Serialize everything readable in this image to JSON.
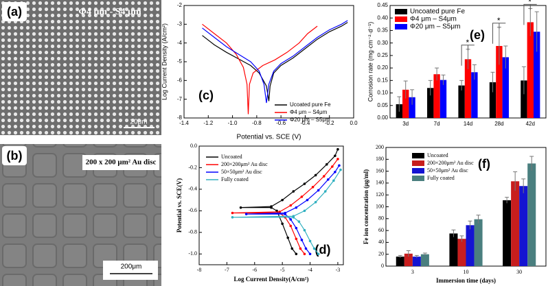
{
  "images": [
    {
      "label": "(a)",
      "caption": "Φ4 μm - S4 μm",
      "scale_bar": "20μm"
    },
    {
      "label": "(b)",
      "caption": "200 x 200 μm² Au disc",
      "scale_bar": "200μm"
    }
  ],
  "chart_data": [
    {
      "type": "line",
      "panel_label": "(c)",
      "x_label": "Potential vs. SCE (V)",
      "y_label": "Log Current Density (A/cm²)",
      "xlim": [
        -1.4,
        0.0
      ],
      "xticks": [
        -1.4,
        -1.2,
        {
          "value": -1.0,
          "label": "-1.0"
        },
        -0.8,
        -0.6,
        -0.4,
        -0.2,
        {
          "value": 0.0,
          "label": "0.0"
        }
      ],
      "ylim": [
        -8,
        -2
      ],
      "yticks": [
        -2,
        -3,
        -4,
        -5,
        -6,
        -7,
        -8
      ],
      "legend": "lower-right",
      "series": [
        {
          "name": "Ucoated pure Fe",
          "color": "#000000",
          "x": [
            -1.25,
            -1.15,
            -1.05,
            -0.95,
            -0.85,
            -0.78,
            -0.72,
            -0.7,
            -0.69,
            -0.66,
            -0.6,
            -0.5,
            -0.4,
            -0.3,
            -0.2,
            -0.1,
            -0.05
          ],
          "values": [
            -3.6,
            -4.1,
            -4.5,
            -4.85,
            -5.2,
            -5.6,
            -6.3,
            -7.1,
            -6.3,
            -5.6,
            -5.2,
            -4.8,
            -4.3,
            -3.8,
            -3.4,
            -3.1,
            -2.9
          ]
        },
        {
          "name": "Φ4 μm – S4μm",
          "color": "#ff0000",
          "x": [
            -1.25,
            -1.15,
            -1.05,
            -0.97,
            -0.91,
            -0.88,
            -0.87,
            -0.86,
            -0.83,
            -0.75,
            -0.65,
            -0.55,
            -0.45,
            -0.38,
            -0.3
          ],
          "values": [
            -3.0,
            -3.5,
            -4.0,
            -4.6,
            -5.3,
            -6.2,
            -7.8,
            -6.2,
            -5.6,
            -5.2,
            -4.9,
            -4.5,
            -4.0,
            -3.5,
            -3.1
          ]
        },
        {
          "name": "Φ20 μm – S5μm",
          "color": "#0000ff",
          "x": [
            -1.25,
            -1.15,
            -1.05,
            -0.95,
            -0.85,
            -0.78,
            -0.74,
            -0.72,
            -0.7,
            -0.66,
            -0.6,
            -0.5,
            -0.4,
            -0.3,
            -0.2,
            -0.1,
            -0.05
          ],
          "values": [
            -3.2,
            -3.7,
            -4.2,
            -4.6,
            -5.0,
            -5.5,
            -6.2,
            -7.2,
            -6.2,
            -5.5,
            -5.1,
            -4.7,
            -4.2,
            -3.7,
            -3.3,
            -3.0,
            -2.8
          ]
        }
      ]
    },
    {
      "type": "line",
      "markers": true,
      "panel_label": "(d)",
      "x_label": "Log Current Density(A/cm²)",
      "y_label": "Potential vs. SCE(V)",
      "xlim": [
        -8,
        -2.8
      ],
      "xticks": [
        -8,
        -7,
        -6,
        -5,
        -4,
        -3
      ],
      "ylim": [
        -1.1,
        0.0
      ],
      "yticks": [
        {
          "value": -1.0,
          "label": "-1.0"
        },
        -0.8,
        -0.6,
        -0.4,
        -0.2,
        {
          "value": 0.0,
          "label": "0.0"
        }
      ],
      "legend": "upper-left",
      "series": [
        {
          "name": "Uncoated",
          "color": "#000000",
          "x": [
            -4.5,
            -4.65,
            -4.8,
            -5.0,
            -5.2,
            -5.4,
            -6.5,
            -5.4,
            -5.0,
            -4.6,
            -4.2,
            -3.8,
            -3.4,
            -3.1,
            -3.0
          ],
          "values": [
            -1.0,
            -0.95,
            -0.85,
            -0.72,
            -0.6,
            -0.57,
            -0.57,
            -0.56,
            -0.5,
            -0.42,
            -0.35,
            -0.27,
            -0.17,
            -0.09,
            -0.03
          ]
        },
        {
          "name": "200×200μm² Au disc",
          "color": "#ff0000",
          "x": [
            -4.2,
            -4.35,
            -4.5,
            -4.7,
            -4.9,
            -5.1,
            -6.8,
            -5.1,
            -4.7,
            -4.3,
            -3.9,
            -3.5,
            -3.2,
            -3.0
          ],
          "values": [
            -1.0,
            -0.95,
            -0.86,
            -0.74,
            -0.66,
            -0.62,
            -0.62,
            -0.61,
            -0.55,
            -0.47,
            -0.38,
            -0.28,
            -0.19,
            -0.12
          ]
        },
        {
          "name": "50×50μm² Au disc",
          "color": "#0000ff",
          "x": [
            -4.0,
            -4.15,
            -4.3,
            -4.5,
            -4.7,
            -4.9,
            -6.3,
            -4.9,
            -4.5,
            -4.1,
            -3.7,
            -3.35,
            -3.1,
            -2.95
          ],
          "values": [
            -1.0,
            -0.95,
            -0.87,
            -0.76,
            -0.68,
            -0.63,
            -0.63,
            -0.62,
            -0.57,
            -0.5,
            -0.41,
            -0.31,
            -0.24,
            -0.18
          ]
        },
        {
          "name": "Fully coated",
          "color": "#30b0c0",
          "x": [
            -3.7,
            -3.85,
            -4.0,
            -4.2,
            -4.4,
            -4.6,
            -6.8,
            -4.6,
            -4.2,
            -3.8,
            -3.45,
            -3.15,
            -2.9
          ],
          "values": [
            -1.0,
            -0.95,
            -0.88,
            -0.78,
            -0.7,
            -0.66,
            -0.66,
            -0.65,
            -0.6,
            -0.52,
            -0.42,
            -0.32,
            -0.22
          ]
        }
      ]
    },
    {
      "type": "bar",
      "panel_label": "(e)",
      "y_label": "Corrosion rate (mg·cm⁻²·d⁻¹)",
      "categories": [
        "3d",
        "7d",
        "14d",
        "28d",
        "42d"
      ],
      "ylim": [
        0,
        0.45
      ],
      "yticks": [
        {
          "value": 0,
          "label": "0.00"
        },
        0.05,
        {
          "value": 0.1,
          "label": "0.10"
        },
        0.15,
        {
          "value": 0.2,
          "label": "0.20"
        },
        0.25,
        {
          "value": 0.3,
          "label": "0.30"
        },
        0.35,
        {
          "value": 0.4,
          "label": "0.40"
        },
        0.45
      ],
      "legend": "upper-left",
      "annotations": [
        "*",
        "*",
        "*"
      ],
      "series": [
        {
          "name": "Uncoated pure Fe",
          "color": "#000000",
          "values": [
            0.055,
            0.12,
            0.13,
            0.143,
            0.15
          ],
          "errors": [
            0.03,
            0.03,
            0.02,
            0.04,
            0.055
          ]
        },
        {
          "name": "Φ4 μm – S4μm",
          "color": "#ff0000",
          "values": [
            0.113,
            0.175,
            0.235,
            0.288,
            0.383
          ],
          "errors": [
            0.035,
            0.025,
            0.04,
            0.075,
            0.055
          ]
        },
        {
          "name": "Φ20 μm – S5μm",
          "color": "#0000ff",
          "values": [
            0.083,
            0.152,
            0.183,
            0.243,
            0.345
          ],
          "errors": [
            0.03,
            0.02,
            0.03,
            0.045,
            0.08
          ]
        }
      ]
    },
    {
      "type": "bar",
      "panel_label": "(f)",
      "x_label": "Immersion time (days)",
      "y_label": "Fe ion concentration (μg/ml)",
      "categories": [
        "3",
        "10",
        "30"
      ],
      "ylim": [
        0,
        200
      ],
      "yticks": [
        0,
        20,
        40,
        60,
        80,
        100,
        120,
        140,
        160,
        180,
        200
      ],
      "legend": "upper-left",
      "series": [
        {
          "name": "Uncoated",
          "color": "#000000",
          "values": [
            16,
            55,
            111
          ],
          "errors": [
            2,
            6,
            5
          ]
        },
        {
          "name": "200×200μm² Au disc",
          "color": "#c81e1e",
          "values": [
            21,
            46,
            143
          ],
          "errors": [
            5,
            5,
            16
          ]
        },
        {
          "name": "50×50μm² Au disc",
          "color": "#1414d2",
          "values": [
            16,
            69,
            135
          ],
          "errors": [
            2,
            7,
            12
          ]
        },
        {
          "name": "Fully coated",
          "color": "#4a7f7f",
          "values": [
            20,
            79,
            173
          ],
          "errors": [
            2,
            7,
            12
          ]
        }
      ]
    }
  ]
}
